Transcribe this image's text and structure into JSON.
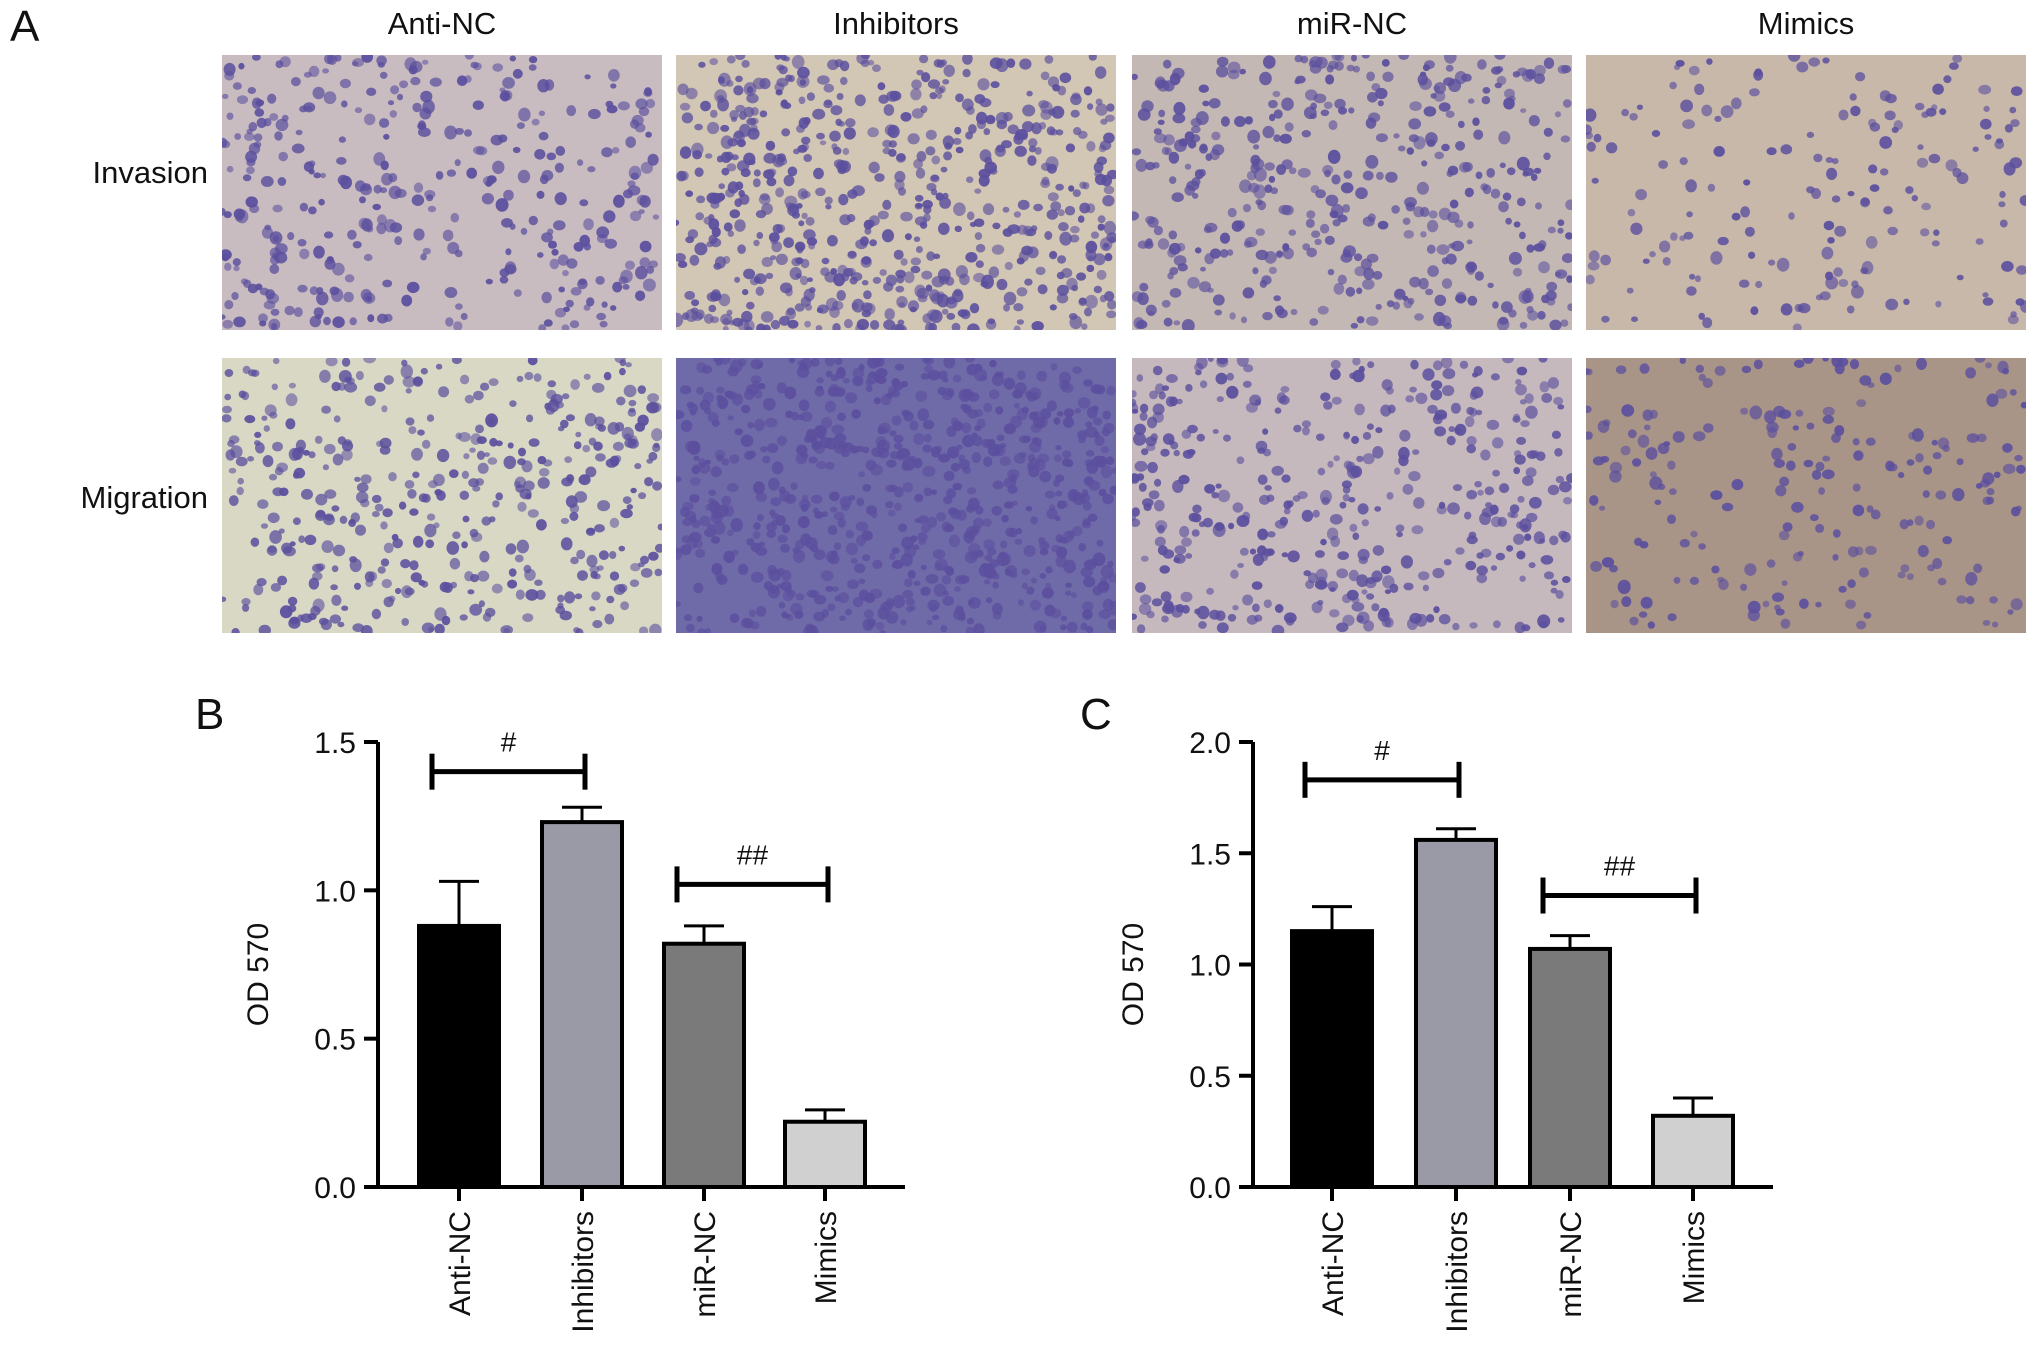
{
  "figure": {
    "panel_a": {
      "letter": "A"
    },
    "panel_b": {
      "letter": "B"
    },
    "panel_c": {
      "letter": "C"
    },
    "columns": [
      "Anti-NC",
      "Inhibitors",
      "miR-NC",
      "Mimics"
    ],
    "rows": [
      "Invasion",
      "Migration"
    ]
  },
  "micrographs": {
    "invasion": [
      {
        "group": "Anti-NC",
        "density": 0.45,
        "bg": "#c9bcc0"
      },
      {
        "group": "Inhibitors",
        "density": 0.9,
        "bg": "#d2c6b4"
      },
      {
        "group": "miR-NC",
        "density": 0.55,
        "bg": "#c4b8b4"
      },
      {
        "group": "Mimics",
        "density": 0.15,
        "bg": "#c8b8aa"
      }
    ],
    "migration": [
      {
        "group": "Anti-NC",
        "density": 0.55,
        "bg": "#d8d8c4"
      },
      {
        "group": "Inhibitors",
        "density": 1.0,
        "bg": "#6f6aa8"
      },
      {
        "group": "miR-NC",
        "density": 0.55,
        "bg": "#c6b9bd"
      },
      {
        "group": "Mimics",
        "density": 0.2,
        "bg": "#a99488"
      }
    ],
    "cell_color": "#5b4f9e"
  },
  "chart_data": [
    {
      "type": "bar",
      "panel": "B",
      "categories": [
        "Anti-NC",
        "Inhibitors",
        "miR-NC",
        "Mimics"
      ],
      "values": [
        0.88,
        1.23,
        0.82,
        0.22
      ],
      "errors": [
        0.15,
        0.05,
        0.06,
        0.04
      ],
      "colors": [
        "#000000",
        "#9a9aa6",
        "#7a7a7a",
        "#d0d0d0"
      ],
      "ylabel": "OD 570",
      "ylim": [
        0,
        1.5
      ],
      "yticks": [
        "0.0",
        "0.5",
        "1.0",
        "1.5"
      ],
      "significance": [
        {
          "from": "Anti-NC",
          "to": "Inhibitors",
          "label": "#",
          "y": 1.4
        },
        {
          "from": "miR-NC",
          "to": "Mimics",
          "label": "##",
          "y": 1.02
        }
      ]
    },
    {
      "type": "bar",
      "panel": "C",
      "categories": [
        "Anti-NC",
        "Inhibitors",
        "miR-NC",
        "Mimics"
      ],
      "values": [
        1.15,
        1.56,
        1.07,
        0.32
      ],
      "errors": [
        0.11,
        0.05,
        0.06,
        0.08
      ],
      "colors": [
        "#000000",
        "#9a9aa6",
        "#7a7a7a",
        "#d0d0d0"
      ],
      "ylabel": "OD 570",
      "ylim": [
        0,
        2.0
      ],
      "yticks": [
        "0.0",
        "0.5",
        "1.0",
        "1.5",
        "2.0"
      ],
      "significance": [
        {
          "from": "Anti-NC",
          "to": "Inhibitors",
          "label": "#",
          "y": 1.83
        },
        {
          "from": "miR-NC",
          "to": "Mimics",
          "label": "##",
          "y": 1.31
        }
      ]
    }
  ]
}
